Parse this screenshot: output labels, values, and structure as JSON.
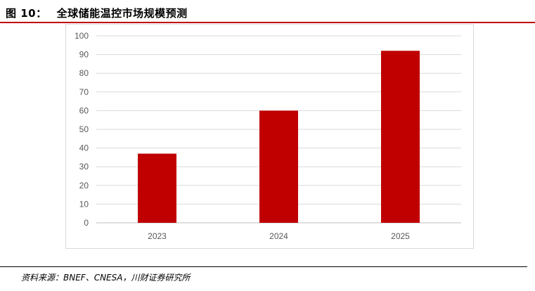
{
  "figure": {
    "label": "图 10：",
    "title": "全球储能温控市场规模预测"
  },
  "source": "资料来源：BNEF、CNESA，川财证券研究所",
  "colors": {
    "bar": "#c00000",
    "title_rule": "#c00000",
    "gridline": "#d9d9d9"
  },
  "chart_data": {
    "type": "bar",
    "title": "",
    "xlabel": "",
    "ylabel": "",
    "categories": [
      "2023",
      "2024",
      "2025"
    ],
    "values": [
      37,
      60,
      92
    ],
    "ylim": [
      0,
      100
    ],
    "yticks": [
      0,
      10,
      20,
      30,
      40,
      50,
      60,
      70,
      80,
      90,
      100
    ],
    "grid": true,
    "legend": "none"
  }
}
